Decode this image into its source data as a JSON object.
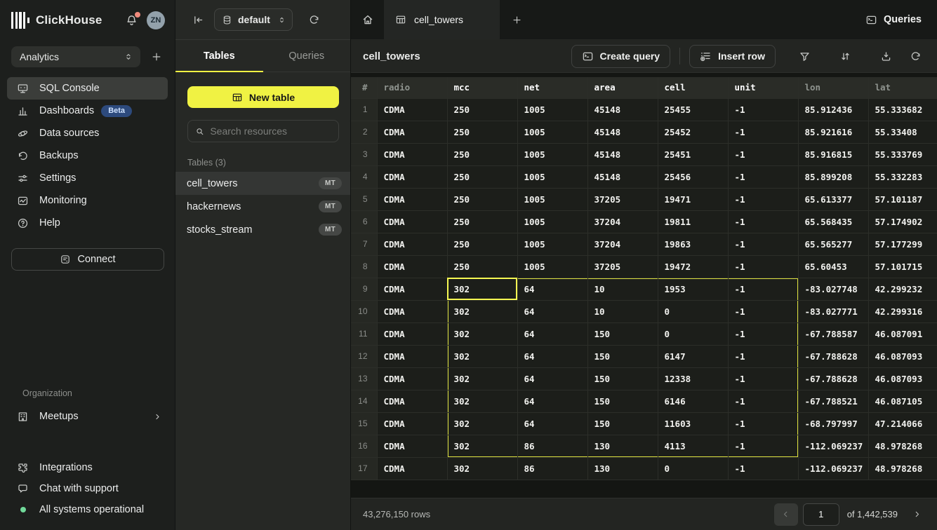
{
  "brand": {
    "name": "ClickHouse",
    "avatar_initials": "ZN"
  },
  "workspace": {
    "name": "Analytics"
  },
  "sidebar": {
    "items": [
      {
        "label": "SQL Console"
      },
      {
        "label": "Dashboards",
        "badge": "Beta"
      },
      {
        "label": "Data sources"
      },
      {
        "label": "Backups"
      },
      {
        "label": "Settings"
      },
      {
        "label": "Monitoring"
      },
      {
        "label": "Help"
      }
    ],
    "connect_label": "Connect",
    "organization_label": "Organization",
    "meetups_label": "Meetups",
    "integrations_label": "Integrations",
    "chat_label": "Chat with support",
    "status_label": "All systems operational"
  },
  "explorer": {
    "database": "default",
    "tabs": {
      "tables": "Tables",
      "queries": "Queries"
    },
    "new_table_label": "New table",
    "search_placeholder": "Search resources",
    "section_label": "Tables (3)",
    "tables": [
      {
        "name": "cell_towers",
        "badge": "MT"
      },
      {
        "name": "hackernews",
        "badge": "MT"
      },
      {
        "name": "stocks_stream",
        "badge": "MT"
      }
    ]
  },
  "main": {
    "doc_tab": "cell_towers",
    "queries_label": "Queries",
    "title": "cell_towers",
    "create_query_label": "Create query",
    "insert_row_label": "Insert row",
    "footer": {
      "rows_label": "43,276,150 rows",
      "page_value": "1",
      "of_label": "of 1,442,539"
    }
  },
  "table": {
    "columns": [
      "radio",
      "mcc",
      "net",
      "area",
      "cell",
      "unit",
      "lon",
      "lat"
    ],
    "rows": [
      [
        "CDMA",
        "250",
        "1005",
        "45148",
        "25455",
        "-1",
        "85.912436",
        "55.333682"
      ],
      [
        "CDMA",
        "250",
        "1005",
        "45148",
        "25452",
        "-1",
        "85.921616",
        "55.33408"
      ],
      [
        "CDMA",
        "250",
        "1005",
        "45148",
        "25451",
        "-1",
        "85.916815",
        "55.333769"
      ],
      [
        "CDMA",
        "250",
        "1005",
        "45148",
        "25456",
        "-1",
        "85.899208",
        "55.332283"
      ],
      [
        "CDMA",
        "250",
        "1005",
        "37205",
        "19471",
        "-1",
        "65.613377",
        "57.101187"
      ],
      [
        "CDMA",
        "250",
        "1005",
        "37204",
        "19811",
        "-1",
        "65.568435",
        "57.174902"
      ],
      [
        "CDMA",
        "250",
        "1005",
        "37204",
        "19863",
        "-1",
        "65.565277",
        "57.177299"
      ],
      [
        "CDMA",
        "250",
        "1005",
        "37205",
        "19472",
        "-1",
        "65.60453",
        "57.101715"
      ],
      [
        "CDMA",
        "302",
        "64",
        "10",
        "1953",
        "-1",
        "-83.027748",
        "42.299232"
      ],
      [
        "CDMA",
        "302",
        "64",
        "10",
        "0",
        "-1",
        "-83.027771",
        "42.299316"
      ],
      [
        "CDMA",
        "302",
        "64",
        "150",
        "0",
        "-1",
        "-67.788587",
        "46.087091"
      ],
      [
        "CDMA",
        "302",
        "64",
        "150",
        "6147",
        "-1",
        "-67.788628",
        "46.087093"
      ],
      [
        "CDMA",
        "302",
        "64",
        "150",
        "12338",
        "-1",
        "-67.788628",
        "46.087093"
      ],
      [
        "CDMA",
        "302",
        "64",
        "150",
        "6146",
        "-1",
        "-67.788521",
        "46.087105"
      ],
      [
        "CDMA",
        "302",
        "64",
        "150",
        "11603",
        "-1",
        "-68.797997",
        "47.214066"
      ],
      [
        "CDMA",
        "302",
        "86",
        "130",
        "4113",
        "-1",
        "-112.069237",
        "48.978268"
      ],
      [
        "CDMA",
        "302",
        "86",
        "130",
        "0",
        "-1",
        "-112.069237",
        "48.978268"
      ]
    ],
    "selection": {
      "row_start": 9,
      "row_end": 16,
      "col_start": "mcc",
      "col_end": "unit",
      "active": {
        "row": 9,
        "col": "mcc"
      },
      "range_color": "#dbdf3f",
      "active_color": "#f6f952"
    }
  }
}
